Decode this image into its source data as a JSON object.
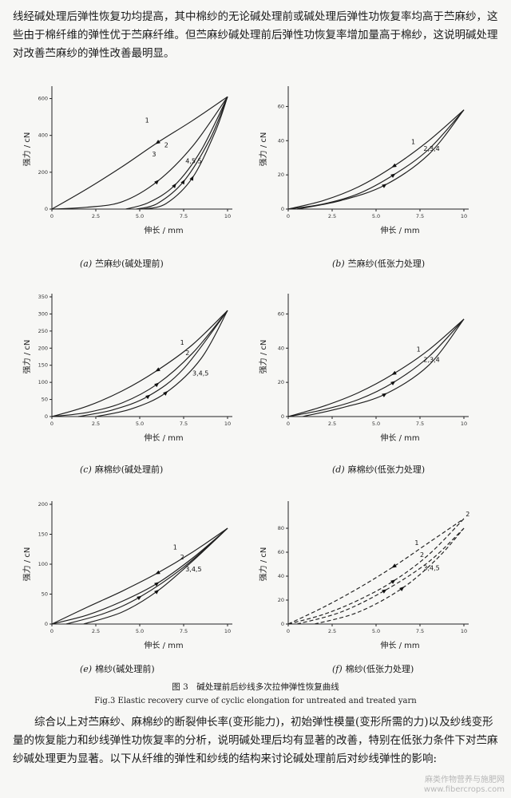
{
  "paragraph_top": "线经碱处理后弹性恢复功均提高，其中棉纱的无论碱处理前或碱处理后弹性功恢复率均高于苎麻纱，这些由于棉纤维的弹性优于苎麻纤维。但苎麻纱碱处理前后弹性功恢复率增加量高于棉纱，这说明碱处理对改善苎麻纱的弹性改善最明显。",
  "figure_caption_cn": "图 3　碱处理前后纱线多次拉伸弹性恢复曲线",
  "figure_caption_en": "Fig.3  Elastic recovery curve of cyclic elongation for untreated and treated yarn",
  "paragraph_bottom": "综合以上对苎麻纱、麻棉纱的断裂伸长率(变形能力)，初始弹性模量(变形所需的力)以及纱线变形量的恢复能力和纱线弹性功恢复率的分析，说明碱处理后均有显著的改善，特别在低张力条件下对苎麻纱碱处理更为显著。以下从纤维的弹性和纱线的结构来讨论碱处理前后对纱线弹性的影响:",
  "watermark": {
    "line1": "麻类作物营养与施肥网",
    "line2": "www.fibercrops.com"
  },
  "chart_data": [
    {
      "type": "line",
      "letter": "(a)",
      "caption": "苎麻纱(碱处理前)",
      "ylabel": "强力 / cN",
      "xlabel": "伸长 / mm",
      "xlim": [
        0,
        10
      ],
      "ylim": [
        0,
        650
      ],
      "xticks": [
        {
          "v": 0,
          "l": "0"
        },
        {
          "v": 2.5,
          "l": "2.5"
        },
        {
          "v": 5,
          "l": "5.0"
        },
        {
          "v": 7.5,
          "l": "7.5"
        },
        {
          "v": 10,
          "l": "10"
        }
      ],
      "yticks": [
        {
          "v": 0,
          "l": "0"
        },
        {
          "v": 200,
          "l": "200"
        },
        {
          "v": 400,
          "l": "400"
        },
        {
          "v": 600,
          "l": "600"
        }
      ],
      "curve_labels": [
        {
          "text": "1",
          "x": 5.3,
          "y": 470
        },
        {
          "text": "2",
          "x": 6.4,
          "y": 335
        },
        {
          "text": "3",
          "x": 5.7,
          "y": 285
        },
        {
          "text": "4,5,5",
          "x": 7.6,
          "y": 250
        }
      ],
      "series": [
        {
          "name": "1",
          "points": [
            [
              0,
              0
            ],
            [
              2,
              110
            ],
            [
              4,
              230
            ],
            [
              6,
              360
            ],
            [
              8,
              480
            ],
            [
              10,
              610
            ]
          ]
        },
        {
          "name": "",
          "points": [
            [
              0,
              0
            ],
            [
              2,
              10
            ],
            [
              4,
              40
            ],
            [
              6,
              150
            ],
            [
              8,
              340
            ],
            [
              10,
              610
            ]
          ]
        },
        {
          "name": "",
          "points": [
            [
              4.2,
              0
            ],
            [
              5.5,
              35
            ],
            [
              7,
              130
            ],
            [
              8.5,
              320
            ],
            [
              10,
              610
            ]
          ]
        },
        {
          "name": "",
          "points": [
            [
              4.8,
              0
            ],
            [
              6,
              30
            ],
            [
              7.5,
              150
            ],
            [
              9,
              380
            ],
            [
              10,
              610
            ]
          ]
        },
        {
          "name": "",
          "points": [
            [
              5.2,
              0
            ],
            [
              6.5,
              30
            ],
            [
              8,
              170
            ],
            [
              9.3,
              420
            ],
            [
              10,
              610
            ]
          ]
        }
      ]
    },
    {
      "type": "line",
      "letter": "(b)",
      "caption": "苎麻纱(低张力处理)",
      "ylabel": "强力 / cN",
      "xlabel": "伸长 / mm",
      "xlim": [
        0,
        10
      ],
      "ylim": [
        0,
        70
      ],
      "xticks": [
        {
          "v": 0,
          "l": "0"
        },
        {
          "v": 2.5,
          "l": "2.5"
        },
        {
          "v": 5,
          "l": "5.0"
        },
        {
          "v": 7.5,
          "l": "7.5"
        },
        {
          "v": 10,
          "l": "10"
        }
      ],
      "yticks": [
        {
          "v": 0,
          "l": "0"
        },
        {
          "v": 20,
          "l": "20"
        },
        {
          "v": 40,
          "l": "40"
        },
        {
          "v": 60,
          "l": "60"
        }
      ],
      "curve_labels": [
        {
          "text": "1",
          "x": 7,
          "y": 38
        },
        {
          "text": "2,3,4",
          "x": 7.7,
          "y": 34
        }
      ],
      "series": [
        {
          "name": "1",
          "points": [
            [
              0,
              0
            ],
            [
              2,
              5
            ],
            [
              4,
              13
            ],
            [
              6,
              25
            ],
            [
              8,
              40
            ],
            [
              10,
              58
            ]
          ]
        },
        {
          "name": "",
          "points": [
            [
              0,
              0
            ],
            [
              2,
              3
            ],
            [
              4,
              9
            ],
            [
              6,
              20
            ],
            [
              8,
              35
            ],
            [
              10,
              58
            ]
          ]
        },
        {
          "name": "",
          "points": [
            [
              0.5,
              0
            ],
            [
              3,
              5
            ],
            [
              5.5,
              14
            ],
            [
              8,
              32
            ],
            [
              10,
              58
            ]
          ]
        }
      ]
    },
    {
      "type": "line",
      "letter": "(c)",
      "caption": "麻棉纱(碱处理前)",
      "ylabel": "强力 / cN",
      "xlabel": "伸长 / mm",
      "xlim": [
        0,
        10
      ],
      "ylim": [
        0,
        350
      ],
      "xticks": [
        {
          "v": 0,
          "l": "0"
        },
        {
          "v": 2.5,
          "l": "2.5"
        },
        {
          "v": 5,
          "l": "5.0"
        },
        {
          "v": 7.5,
          "l": "7.5"
        },
        {
          "v": 10,
          "l": "10"
        }
      ],
      "yticks": [
        {
          "v": 0,
          "l": "0"
        },
        {
          "v": 50,
          "l": "50"
        },
        {
          "v": 100,
          "l": "100"
        },
        {
          "v": 150,
          "l": "150"
        },
        {
          "v": 200,
          "l": "200"
        },
        {
          "v": 250,
          "l": "250"
        },
        {
          "v": 300,
          "l": "300"
        },
        {
          "v": 350,
          "l": "350"
        }
      ],
      "curve_labels": [
        {
          "text": "1",
          "x": 7.3,
          "y": 210
        },
        {
          "text": "2",
          "x": 7.6,
          "y": 180
        },
        {
          "text": "3,4,5",
          "x": 8,
          "y": 120
        }
      ],
      "series": [
        {
          "name": "1",
          "points": [
            [
              0,
              0
            ],
            [
              2,
              30
            ],
            [
              4,
              75
            ],
            [
              6,
              135
            ],
            [
              8,
              210
            ],
            [
              10,
              310
            ]
          ]
        },
        {
          "name": "",
          "points": [
            [
              0,
              0
            ],
            [
              2,
              12
            ],
            [
              4,
              40
            ],
            [
              6,
              95
            ],
            [
              8,
              185
            ],
            [
              10,
              310
            ]
          ]
        },
        {
          "name": "",
          "points": [
            [
              1.5,
              0
            ],
            [
              3.5,
              20
            ],
            [
              5.5,
              60
            ],
            [
              7.5,
              140
            ],
            [
              10,
              310
            ]
          ]
        },
        {
          "name": "",
          "points": [
            [
              2.5,
              0
            ],
            [
              4.5,
              22
            ],
            [
              6.5,
              70
            ],
            [
              8.5,
              170
            ],
            [
              10,
              310
            ]
          ]
        }
      ]
    },
    {
      "type": "line",
      "letter": "(d)",
      "caption": "麻棉纱(低张力处理)",
      "ylabel": "强力 / cN",
      "xlabel": "伸长 / mm",
      "xlim": [
        0,
        10
      ],
      "ylim": [
        0,
        70
      ],
      "xticks": [
        {
          "v": 0,
          "l": "0"
        },
        {
          "v": 2.5,
          "l": "2.5"
        },
        {
          "v": 5,
          "l": "5.0"
        },
        {
          "v": 7.5,
          "l": "7.5"
        },
        {
          "v": 10,
          "l": "10"
        }
      ],
      "yticks": [
        {
          "v": 0,
          "l": "0"
        },
        {
          "v": 20,
          "l": "20"
        },
        {
          "v": 40,
          "l": "40"
        },
        {
          "v": 60,
          "l": "60"
        }
      ],
      "curve_labels": [
        {
          "text": "1",
          "x": 7.3,
          "y": 38
        },
        {
          "text": "2,3,4",
          "x": 7.7,
          "y": 32
        }
      ],
      "series": [
        {
          "name": "1",
          "points": [
            [
              0,
              0
            ],
            [
              2,
              6
            ],
            [
              4,
              14
            ],
            [
              6,
              25
            ],
            [
              8,
              39
            ],
            [
              10,
              57
            ]
          ]
        },
        {
          "name": "",
          "points": [
            [
              0,
              0
            ],
            [
              2,
              4
            ],
            [
              4,
              10
            ],
            [
              6,
              20
            ],
            [
              8,
              35
            ],
            [
              10,
              57
            ]
          ]
        },
        {
          "name": "",
          "points": [
            [
              0.8,
              0
            ],
            [
              3,
              5
            ],
            [
              5.5,
              13
            ],
            [
              8,
              30
            ],
            [
              10,
              57
            ]
          ]
        }
      ]
    },
    {
      "type": "line",
      "letter": "(e)",
      "caption": "棉纱(碱处理前)",
      "ylabel": "强力 / cN",
      "xlabel": "伸长 / mm",
      "xlim": [
        0,
        10
      ],
      "ylim": [
        0,
        200
      ],
      "xticks": [
        {
          "v": 0,
          "l": "0"
        },
        {
          "v": 2.5,
          "l": "2.5"
        },
        {
          "v": 5,
          "l": "5.0"
        },
        {
          "v": 7.5,
          "l": "7.5"
        },
        {
          "v": 10,
          "l": "10"
        }
      ],
      "yticks": [
        {
          "v": 0,
          "l": "0"
        },
        {
          "v": 50,
          "l": "50"
        },
        {
          "v": 100,
          "l": "100"
        },
        {
          "v": 150,
          "l": "150"
        },
        {
          "v": 200,
          "l": "200"
        }
      ],
      "curve_labels": [
        {
          "text": "1",
          "x": 6.9,
          "y": 125
        },
        {
          "text": "2",
          "x": 7.3,
          "y": 108
        },
        {
          "text": "3,4,5",
          "x": 7.6,
          "y": 88
        }
      ],
      "series": [
        {
          "name": "1",
          "points": [
            [
              0,
              0
            ],
            [
              2,
              28
            ],
            [
              4,
              55
            ],
            [
              6,
              85
            ],
            [
              8,
              120
            ],
            [
              10,
              160
            ]
          ]
        },
        {
          "name": "",
          "points": [
            [
              0,
              0
            ],
            [
              2,
              15
            ],
            [
              4,
              38
            ],
            [
              6,
              68
            ],
            [
              8,
              110
            ],
            [
              10,
              160
            ]
          ]
        },
        {
          "name": "",
          "points": [
            [
              0.8,
              0
            ],
            [
              3,
              18
            ],
            [
              5,
              45
            ],
            [
              7.5,
              95
            ],
            [
              10,
              160
            ]
          ]
        },
        {
          "name": "",
          "points": [
            [
              1.8,
              0
            ],
            [
              4,
              20
            ],
            [
              6,
              55
            ],
            [
              8,
              105
            ],
            [
              10,
              160
            ]
          ]
        }
      ]
    },
    {
      "type": "line",
      "letter": "(f)",
      "caption": "棉纱(低张力处理)",
      "ylabel": "强力 / cN",
      "xlabel": "伸长 / mm",
      "xlim": [
        0,
        10
      ],
      "ylim": [
        0,
        100
      ],
      "xticks": [
        {
          "v": 0,
          "l": "0"
        },
        {
          "v": 2.5,
          "l": "2.5"
        },
        {
          "v": 5,
          "l": "5.0"
        },
        {
          "v": 7.5,
          "l": "7.5"
        },
        {
          "v": 10,
          "l": "10"
        }
      ],
      "yticks": [
        {
          "v": 0,
          "l": "0"
        },
        {
          "v": 20,
          "l": "20"
        },
        {
          "v": 40,
          "l": "40"
        },
        {
          "v": 60,
          "l": "60"
        },
        {
          "v": 80,
          "l": "80"
        }
      ],
      "curve_labels": [
        {
          "text": "1",
          "x": 7.2,
          "y": 66
        },
        {
          "text": "2",
          "x": 7.5,
          "y": 56
        },
        {
          "text": "3,4,5",
          "x": 7.7,
          "y": 45
        },
        {
          "text": "2",
          "x": 10.1,
          "y": 90
        }
      ],
      "series": [
        {
          "name": "1",
          "dashed": true,
          "points": [
            [
              0,
              0
            ],
            [
              2,
              14
            ],
            [
              4,
              30
            ],
            [
              6,
              48
            ],
            [
              8,
              68
            ],
            [
              10,
              88
            ]
          ]
        },
        {
          "name": "",
          "dashed": true,
          "points": [
            [
              0,
              0
            ],
            [
              2,
              8
            ],
            [
              4,
              20
            ],
            [
              6,
              36
            ],
            [
              8,
              58
            ],
            [
              10,
              88
            ]
          ]
        },
        {
          "name": "",
          "dashed": true,
          "points": [
            [
              0.5,
              0
            ],
            [
              3,
              10
            ],
            [
              5.5,
              28
            ],
            [
              8,
              52
            ],
            [
              10,
              80
            ]
          ]
        },
        {
          "name": "",
          "dashed": true,
          "points": [
            [
              1.5,
              0
            ],
            [
              4,
              10
            ],
            [
              6.5,
              30
            ],
            [
              8.5,
              55
            ],
            [
              10,
              80
            ]
          ]
        }
      ]
    }
  ]
}
